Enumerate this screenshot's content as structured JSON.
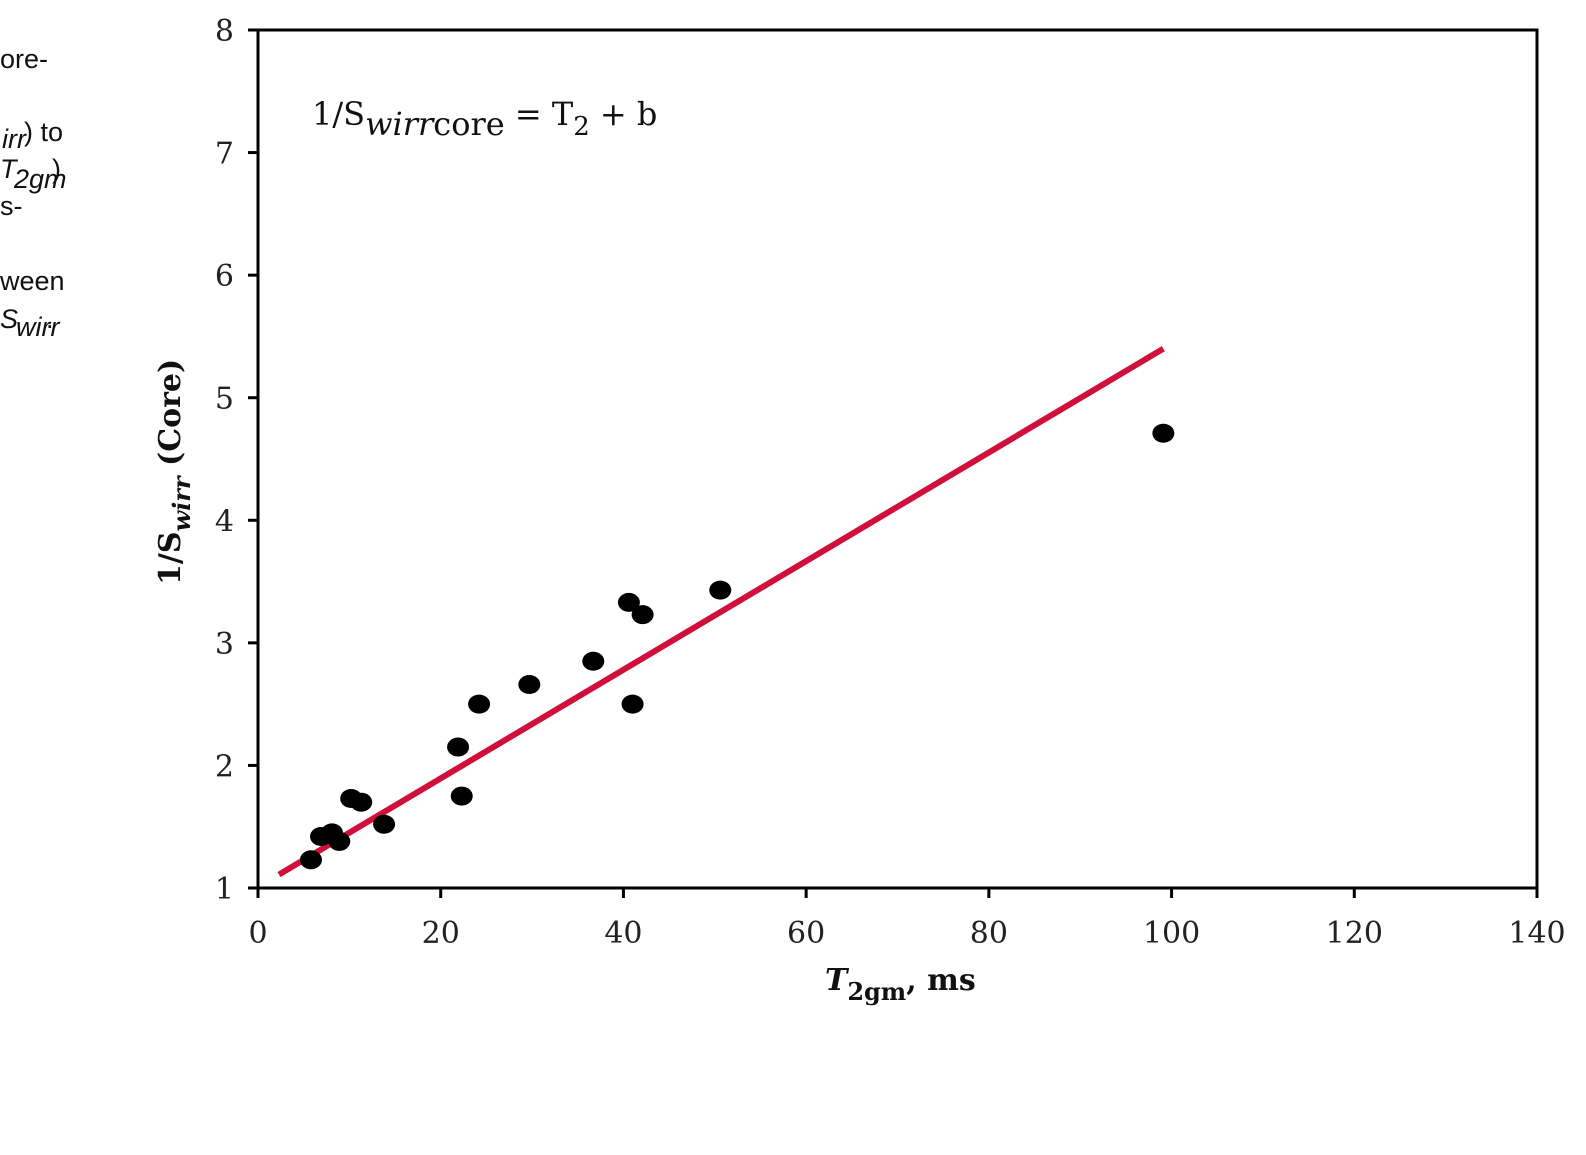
{
  "caption_fragments": [
    "ore-",
    "irr",
    ") to",
    "T",
    "2gm",
    ")",
    "s-",
    "ween",
    "S",
    "wirr",
    "."
  ],
  "chart_data": {
    "type": "scatter",
    "equation": [
      "1/S",
      "wirr",
      "core",
      " = T",
      "2",
      " + b"
    ],
    "x_label": [
      "T",
      "2gm",
      ", ms"
    ],
    "y_label": [
      "1/S",
      "wirr",
      " (Core)"
    ],
    "xlim": [
      0,
      140
    ],
    "xticks": [
      0,
      20,
      40,
      60,
      80,
      100,
      120,
      140
    ],
    "ylim": [
      1,
      8
    ],
    "yticks": [
      1,
      2,
      3,
      4,
      5,
      6,
      7,
      8
    ],
    "points": {
      "color": "#000000",
      "x": [
        5.8,
        6.9,
        8.1,
        8.9,
        10.2,
        11.3,
        13.8,
        21.9,
        22.3,
        24.2,
        29.7,
        36.7,
        40.6,
        41.0,
        42.1,
        50.6,
        99.1
      ],
      "y": [
        1.23,
        1.42,
        1.45,
        1.38,
        1.73,
        1.7,
        1.52,
        2.15,
        1.75,
        2.5,
        2.66,
        2.85,
        3.33,
        2.5,
        3.23,
        3.43,
        4.71
      ]
    },
    "fit_line": {
      "color": "#d0103a",
      "x": [
        2.3,
        99.1
      ],
      "y": [
        1.11,
        5.4
      ]
    }
  }
}
